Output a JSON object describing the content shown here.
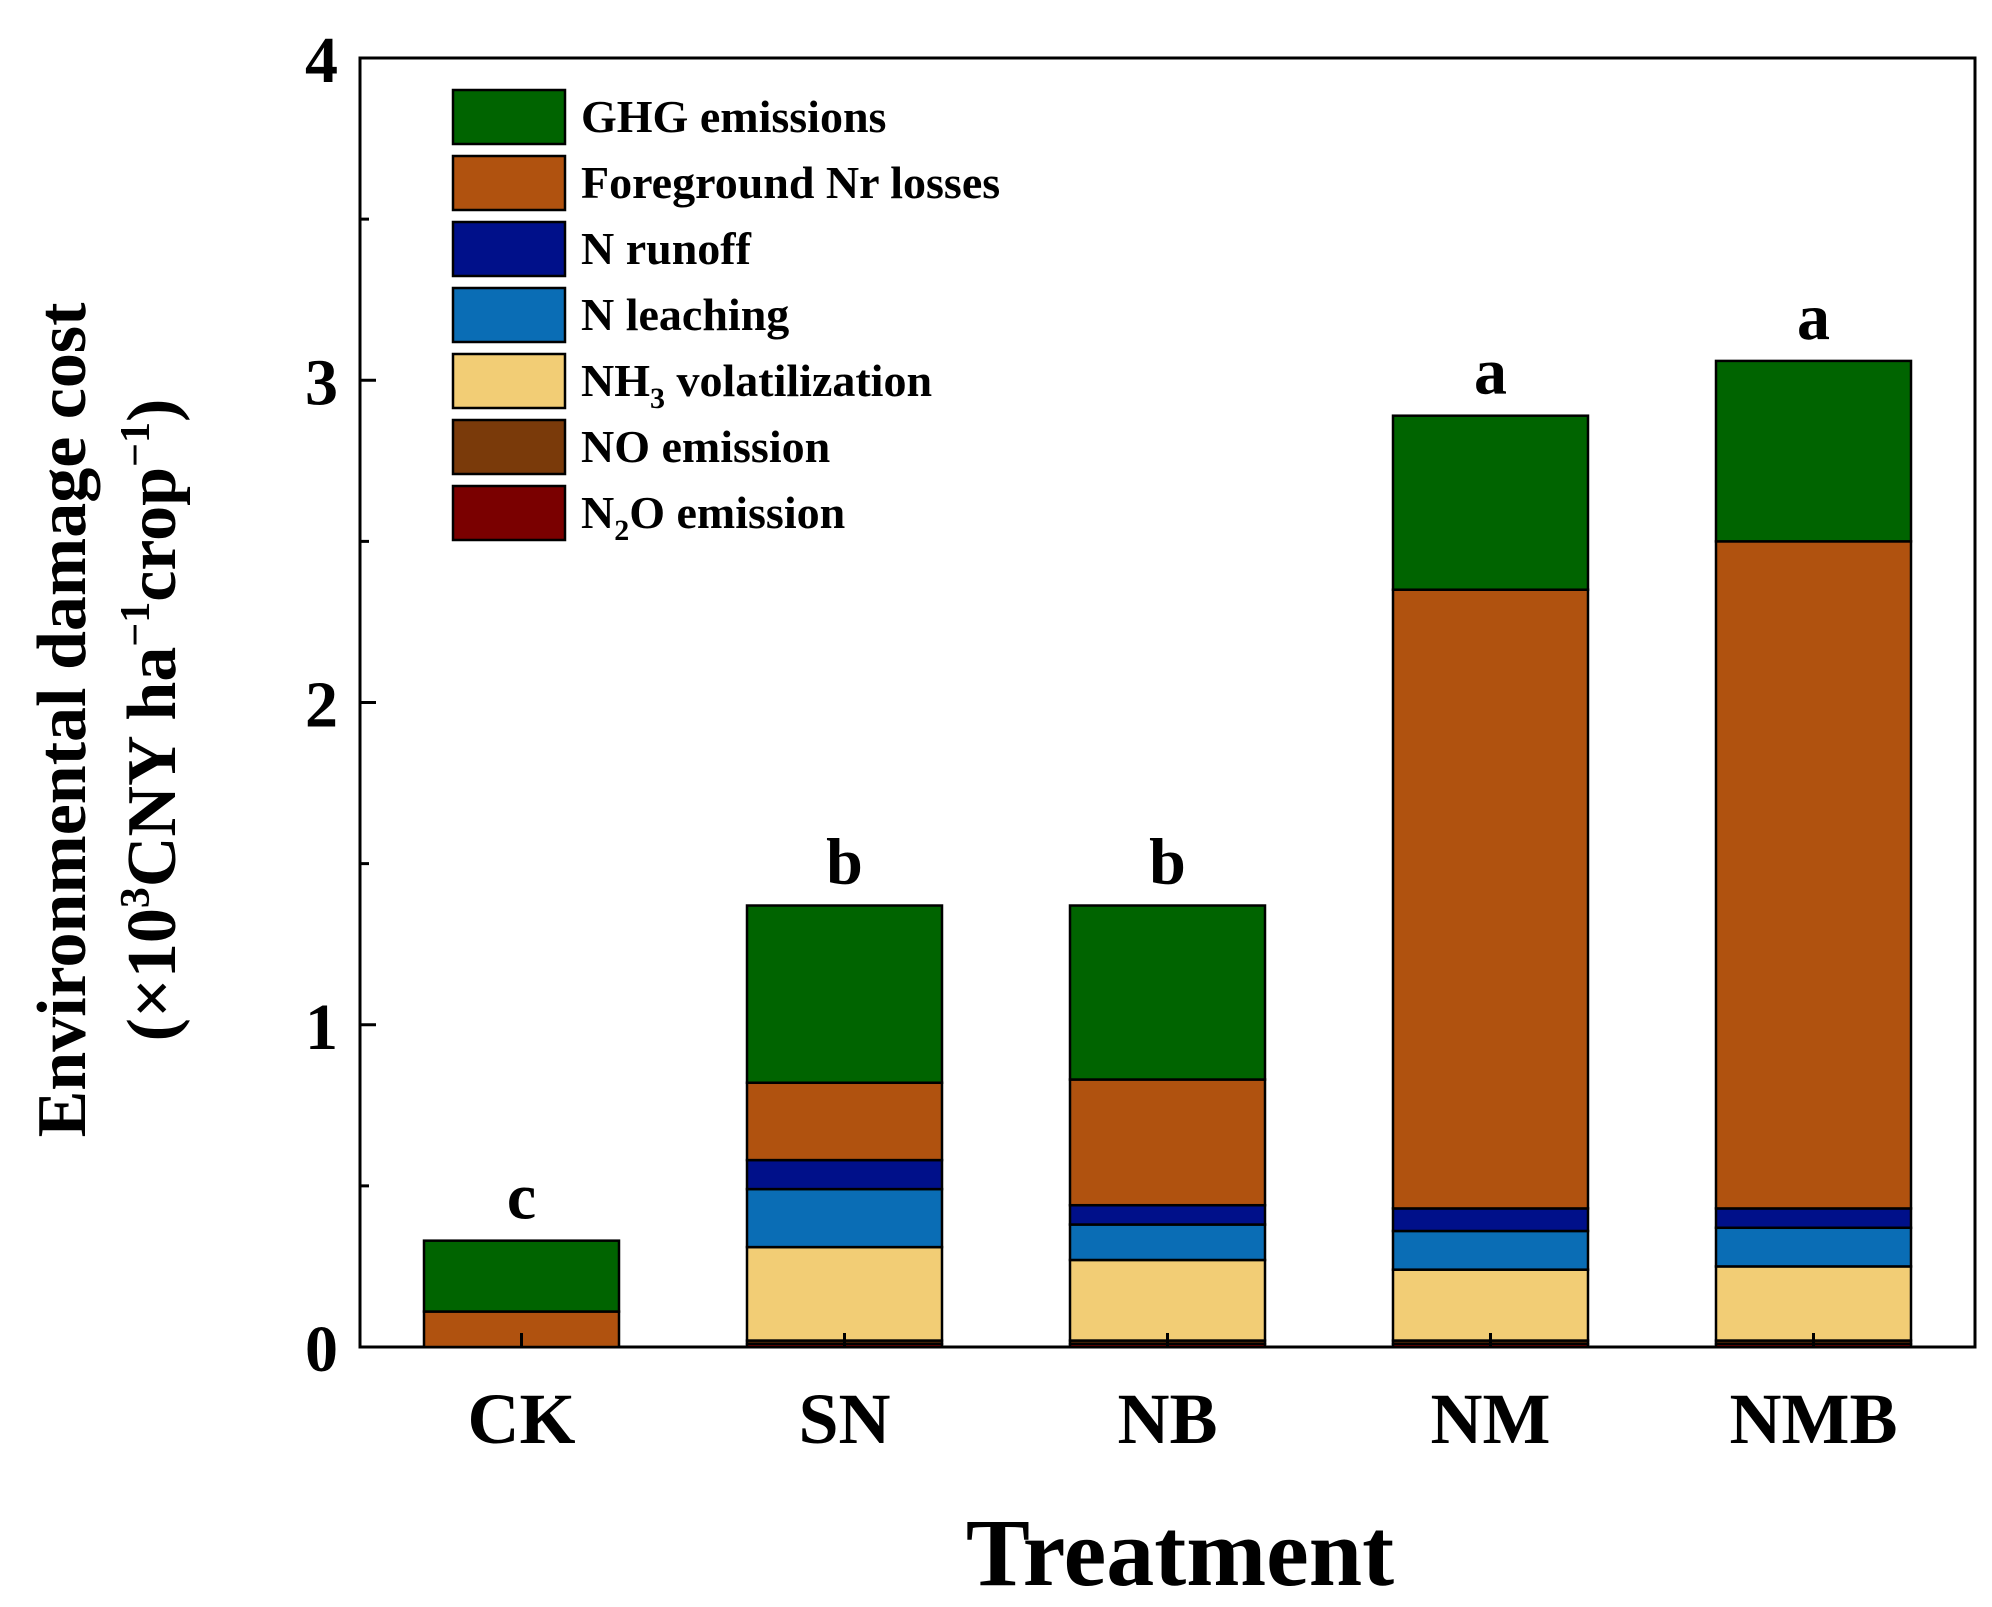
{
  "chart_data": {
    "type": "bar",
    "stacked": true,
    "title": "",
    "xlabel": "Treatment",
    "ylabel": {
      "line1": "Environmental damage cost",
      "line2_parts": [
        "(×10",
        "3",
        "CNY ha",
        "−1",
        "crop",
        "−1",
        ")"
      ]
    },
    "ylim": [
      0,
      4
    ],
    "yticks": [
      "0",
      "1",
      "2",
      "3",
      "4"
    ],
    "categories": [
      "CK",
      "SN",
      "NB",
      "NM",
      "NMB"
    ],
    "significance_letters": [
      "c",
      "b",
      "b",
      "a",
      "a"
    ],
    "series": [
      {
        "name": "N2O emission",
        "label_parts": [
          "N",
          "2",
          "O emission"
        ],
        "color": "#7a0000",
        "values": [
          0.0,
          0.01,
          0.01,
          0.01,
          0.01
        ]
      },
      {
        "name": "NO emission",
        "label_parts": [
          "NO emission"
        ],
        "color": "#7a3a0a",
        "values": [
          0.0,
          0.01,
          0.01,
          0.01,
          0.01
        ]
      },
      {
        "name": "NH3 volatilization",
        "label_parts": [
          "NH",
          "3",
          " volatilization"
        ],
        "color": "#f2cd75",
        "values": [
          0.0,
          0.29,
          0.25,
          0.22,
          0.23
        ]
      },
      {
        "name": "N leaching",
        "label_parts": [
          "N leaching"
        ],
        "color": "#0a6db5",
        "values": [
          0.0,
          0.18,
          0.11,
          0.12,
          0.12
        ]
      },
      {
        "name": "N runoff",
        "label_parts": [
          "N runoff"
        ],
        "color": "#00108a",
        "values": [
          0.0,
          0.09,
          0.06,
          0.07,
          0.06
        ]
      },
      {
        "name": "Foreground Nr losses",
        "label_parts": [
          "Foreground Nr losses"
        ],
        "color": "#b0520f",
        "values": [
          0.11,
          0.24,
          0.39,
          1.92,
          2.07
        ]
      },
      {
        "name": "GHG emissions",
        "label_parts": [
          "GHG emissions"
        ],
        "color": "#006400",
        "values": [
          0.22,
          0.55,
          0.54,
          0.54,
          0.56
        ]
      }
    ],
    "legend_order": [
      "GHG emissions",
      "Foreground Nr losses",
      "N runoff",
      "N leaching",
      "NH3 volatilization",
      "NO emission",
      "N2O emission"
    ],
    "legend_position": "top-left",
    "grid": false
  }
}
